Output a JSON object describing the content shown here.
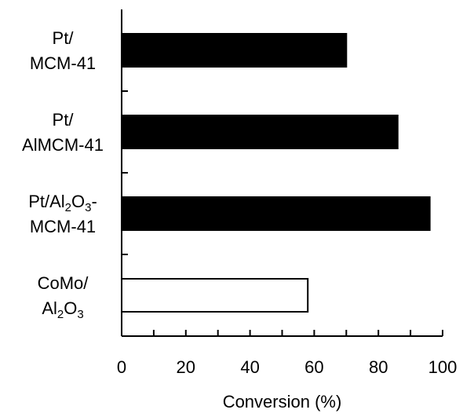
{
  "chart_data": {
    "type": "bar",
    "orientation": "horizontal",
    "title": "",
    "xlabel": "Conversion (%)",
    "ylabel": "",
    "xlim": [
      0,
      100
    ],
    "x_ticks": [
      0,
      20,
      40,
      60,
      80,
      100
    ],
    "categories": [
      {
        "lines": [
          [
            {
              "t": "Pt/"
            }
          ],
          [
            {
              "t": "MCM-41"
            }
          ]
        ],
        "text": "Pt/ MCM-41",
        "value": 70,
        "fill": "#000000"
      },
      {
        "lines": [
          [
            {
              "t": "Pt/"
            }
          ],
          [
            {
              "t": "AlMCM-41"
            }
          ]
        ],
        "text": "Pt/ AlMCM-41",
        "value": 86,
        "fill": "#000000"
      },
      {
        "lines": [
          [
            {
              "t": "Pt/Al"
            },
            {
              "t": "2",
              "sub": true
            },
            {
              "t": "O"
            },
            {
              "t": "3",
              "sub": true
            },
            {
              "t": "-"
            }
          ],
          [
            {
              "t": "MCM-41"
            }
          ]
        ],
        "text": "Pt/Al2O3- MCM-41",
        "value": 96,
        "fill": "#000000"
      },
      {
        "lines": [
          [
            {
              "t": "CoMo/"
            }
          ],
          [
            {
              "t": "Al"
            },
            {
              "t": "2",
              "sub": true
            },
            {
              "t": "O"
            },
            {
              "t": "3",
              "sub": true
            }
          ]
        ],
        "text": "CoMo/ Al2O3",
        "value": 58,
        "fill": "#ffffff"
      }
    ],
    "grid": false,
    "legend": "none"
  }
}
